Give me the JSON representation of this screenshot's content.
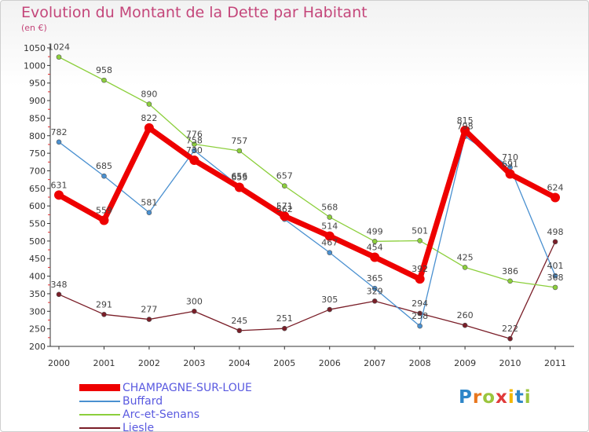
{
  "title": "Evolution du Montant de la Dette par Habitant",
  "subtitle": "(en €)",
  "logo": {
    "text": "Proxiti",
    "letter_colors": [
      "#2e86c8",
      "#e8771e",
      "#9bc53d",
      "#e03a3a",
      "#f2b705",
      "#2e86c8",
      "#9bc53d"
    ]
  },
  "chart_data": {
    "type": "line",
    "x": [
      "2000",
      "2001",
      "2002",
      "2003",
      "2004",
      "2005",
      "2006",
      "2007",
      "2008",
      "2009",
      "2010",
      "2011"
    ],
    "ylim": [
      200,
      1050
    ],
    "yticks": [
      200,
      250,
      300,
      350,
      400,
      450,
      500,
      550,
      600,
      650,
      700,
      750,
      800,
      850,
      900,
      950,
      1000,
      1050
    ],
    "grid": false,
    "legend_placement": "bottom",
    "series": [
      {
        "name": "CHAMPAGNE-SUR-LOUE",
        "color": "#ee0000",
        "values": [
          631,
          559,
          822,
          730,
          653,
          571,
          514,
          454,
          392,
          815,
          691,
          624
        ]
      },
      {
        "name": "Buffard",
        "color": "#4a90d0",
        "values": [
          782,
          685,
          581,
          758,
          656,
          562,
          467,
          365,
          258,
          798,
          710,
          401
        ]
      },
      {
        "name": "Arc-et-Senans",
        "color": "#8ccf3c",
        "values": [
          1024,
          958,
          890,
          776,
          757,
          657,
          568,
          499,
          501,
          425,
          386,
          368
        ]
      },
      {
        "name": "Liesle",
        "color": "#7a1e28",
        "values": [
          348,
          291,
          277,
          300,
          245,
          251,
          305,
          329,
          294,
          260,
          222,
          498
        ]
      }
    ]
  }
}
